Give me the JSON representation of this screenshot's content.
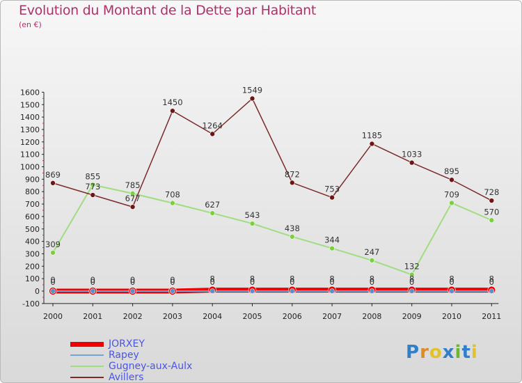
{
  "header": {
    "title": "Evolution du Montant de la Dette par Habitant",
    "subtitle": "(en €)"
  },
  "logo": {
    "letters": [
      "P",
      "r",
      "o",
      "x",
      "i",
      "t",
      "i"
    ],
    "colors": [
      "#2f80c9",
      "#e08a22",
      "#e3c12b",
      "#2f80c9",
      "#6bb82a",
      "#2f80c9",
      "#e3c12b"
    ]
  },
  "colors": {
    "JORXEY": "#ee0000",
    "Rapey": "#73a6d8",
    "Gugney-aux-Aulx": "#9edd80",
    "Avillers": "#7b2a2a",
    "Avillers_marker": "#6e1515",
    "Gugney_marker": "#7ccf3f",
    "Rapey_marker": "#5a8fc8",
    "label": "#333333",
    "axis_label": "#222222"
  },
  "chart_data": {
    "type": "line",
    "title": "Evolution du Montant de la Dette par Habitant",
    "subtitle": "(en €)",
    "xlabel": "",
    "ylabel": "",
    "categories": [
      "2000",
      "2001",
      "2002",
      "2003",
      "2004",
      "2005",
      "2006",
      "2007",
      "2008",
      "2009",
      "2010",
      "2011"
    ],
    "ylim": [
      -100,
      1600
    ],
    "yticks": [
      -100,
      0,
      100,
      200,
      300,
      400,
      500,
      600,
      700,
      800,
      900,
      1000,
      1100,
      1200,
      1300,
      1400,
      1500,
      1600
    ],
    "grid": false,
    "legend_position": "bottom-left",
    "series": [
      {
        "name": "JORXEY",
        "values": [
          0,
          0,
          0,
          0,
          8,
          8,
          8,
          8,
          8,
          8,
          8,
          8
        ],
        "labels": [
          "0",
          "0",
          "0",
          "0",
          "8",
          "8",
          "8",
          "8",
          "8",
          "8",
          "8",
          "8"
        ]
      },
      {
        "name": "Rapey",
        "values": [
          0,
          0,
          0,
          0,
          0,
          0,
          0,
          0,
          0,
          0,
          0,
          0
        ],
        "labels": [
          "0",
          "0",
          "0",
          "0",
          "0",
          "0",
          "0",
          "0",
          "0",
          "0",
          "0",
          "0"
        ]
      },
      {
        "name": "Gugney-aux-Aulx",
        "values": [
          309,
          855,
          785,
          708,
          627,
          543,
          438,
          344,
          247,
          132,
          709,
          570
        ],
        "labels": [
          "309",
          "855",
          "785",
          "708",
          "627",
          "543",
          "438",
          "344",
          "247",
          "132",
          "709",
          "570"
        ]
      },
      {
        "name": "Avillers",
        "values": [
          869,
          773,
          677,
          1450,
          1264,
          1549,
          872,
          753,
          1185,
          1033,
          895,
          728
        ],
        "labels": [
          "869",
          "773",
          "677",
          "1450",
          "1264",
          "1549",
          "872",
          "753",
          "1185",
          "1033",
          "895",
          "728"
        ]
      }
    ]
  }
}
